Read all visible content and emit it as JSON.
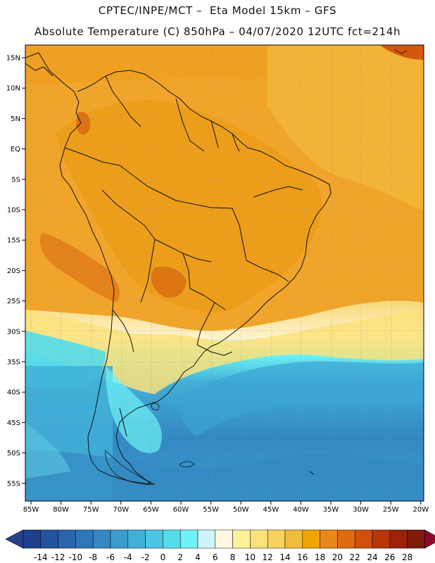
{
  "header": {
    "line1": "CPTEC/INPE/MCT –  Eta Model 15km – GFS",
    "line2": "Absolute Temperature (C) 850hPa – 04/07/2020 12UTC fct=214h"
  },
  "map": {
    "lat_labels": [
      "15N",
      "10N",
      "5N",
      "EQ",
      "5S",
      "10S",
      "15S",
      "20S",
      "25S",
      "30S",
      "35S",
      "40S",
      "45S",
      "50S",
      "55S"
    ],
    "lon_labels": [
      "85W",
      "80W",
      "75W",
      "70W",
      "65W",
      "60W",
      "55W",
      "50W",
      "45W",
      "40W",
      "35W",
      "30W",
      "25W",
      "20W"
    ],
    "region": "South America"
  },
  "colorbar": {
    "labels": [
      "-14",
      "-12",
      "-10",
      "-8",
      "-6",
      "-4",
      "-2",
      "0",
      "2",
      "4",
      "6",
      "8",
      "10",
      "12",
      "14",
      "16",
      "18",
      "20",
      "22",
      "24",
      "26",
      "28"
    ],
    "colors": [
      "#1f3f8f",
      "#2453a0",
      "#2a64ac",
      "#2f76b8",
      "#3388c2",
      "#3a9bcd",
      "#41b0d8",
      "#4ac6e3",
      "#55dcea",
      "#6ef2f6",
      "#cdf4fb",
      "#fff7e0",
      "#fdf29a",
      "#fbe17a",
      "#f7d060",
      "#f3bb3a",
      "#f0a500",
      "#e9871a",
      "#e06a10",
      "#d1500d",
      "#b9360b",
      "#9a2308",
      "#7d1a0a"
    ],
    "under_color": "#28408c",
    "over_color": "#8b0a2a"
  }
}
